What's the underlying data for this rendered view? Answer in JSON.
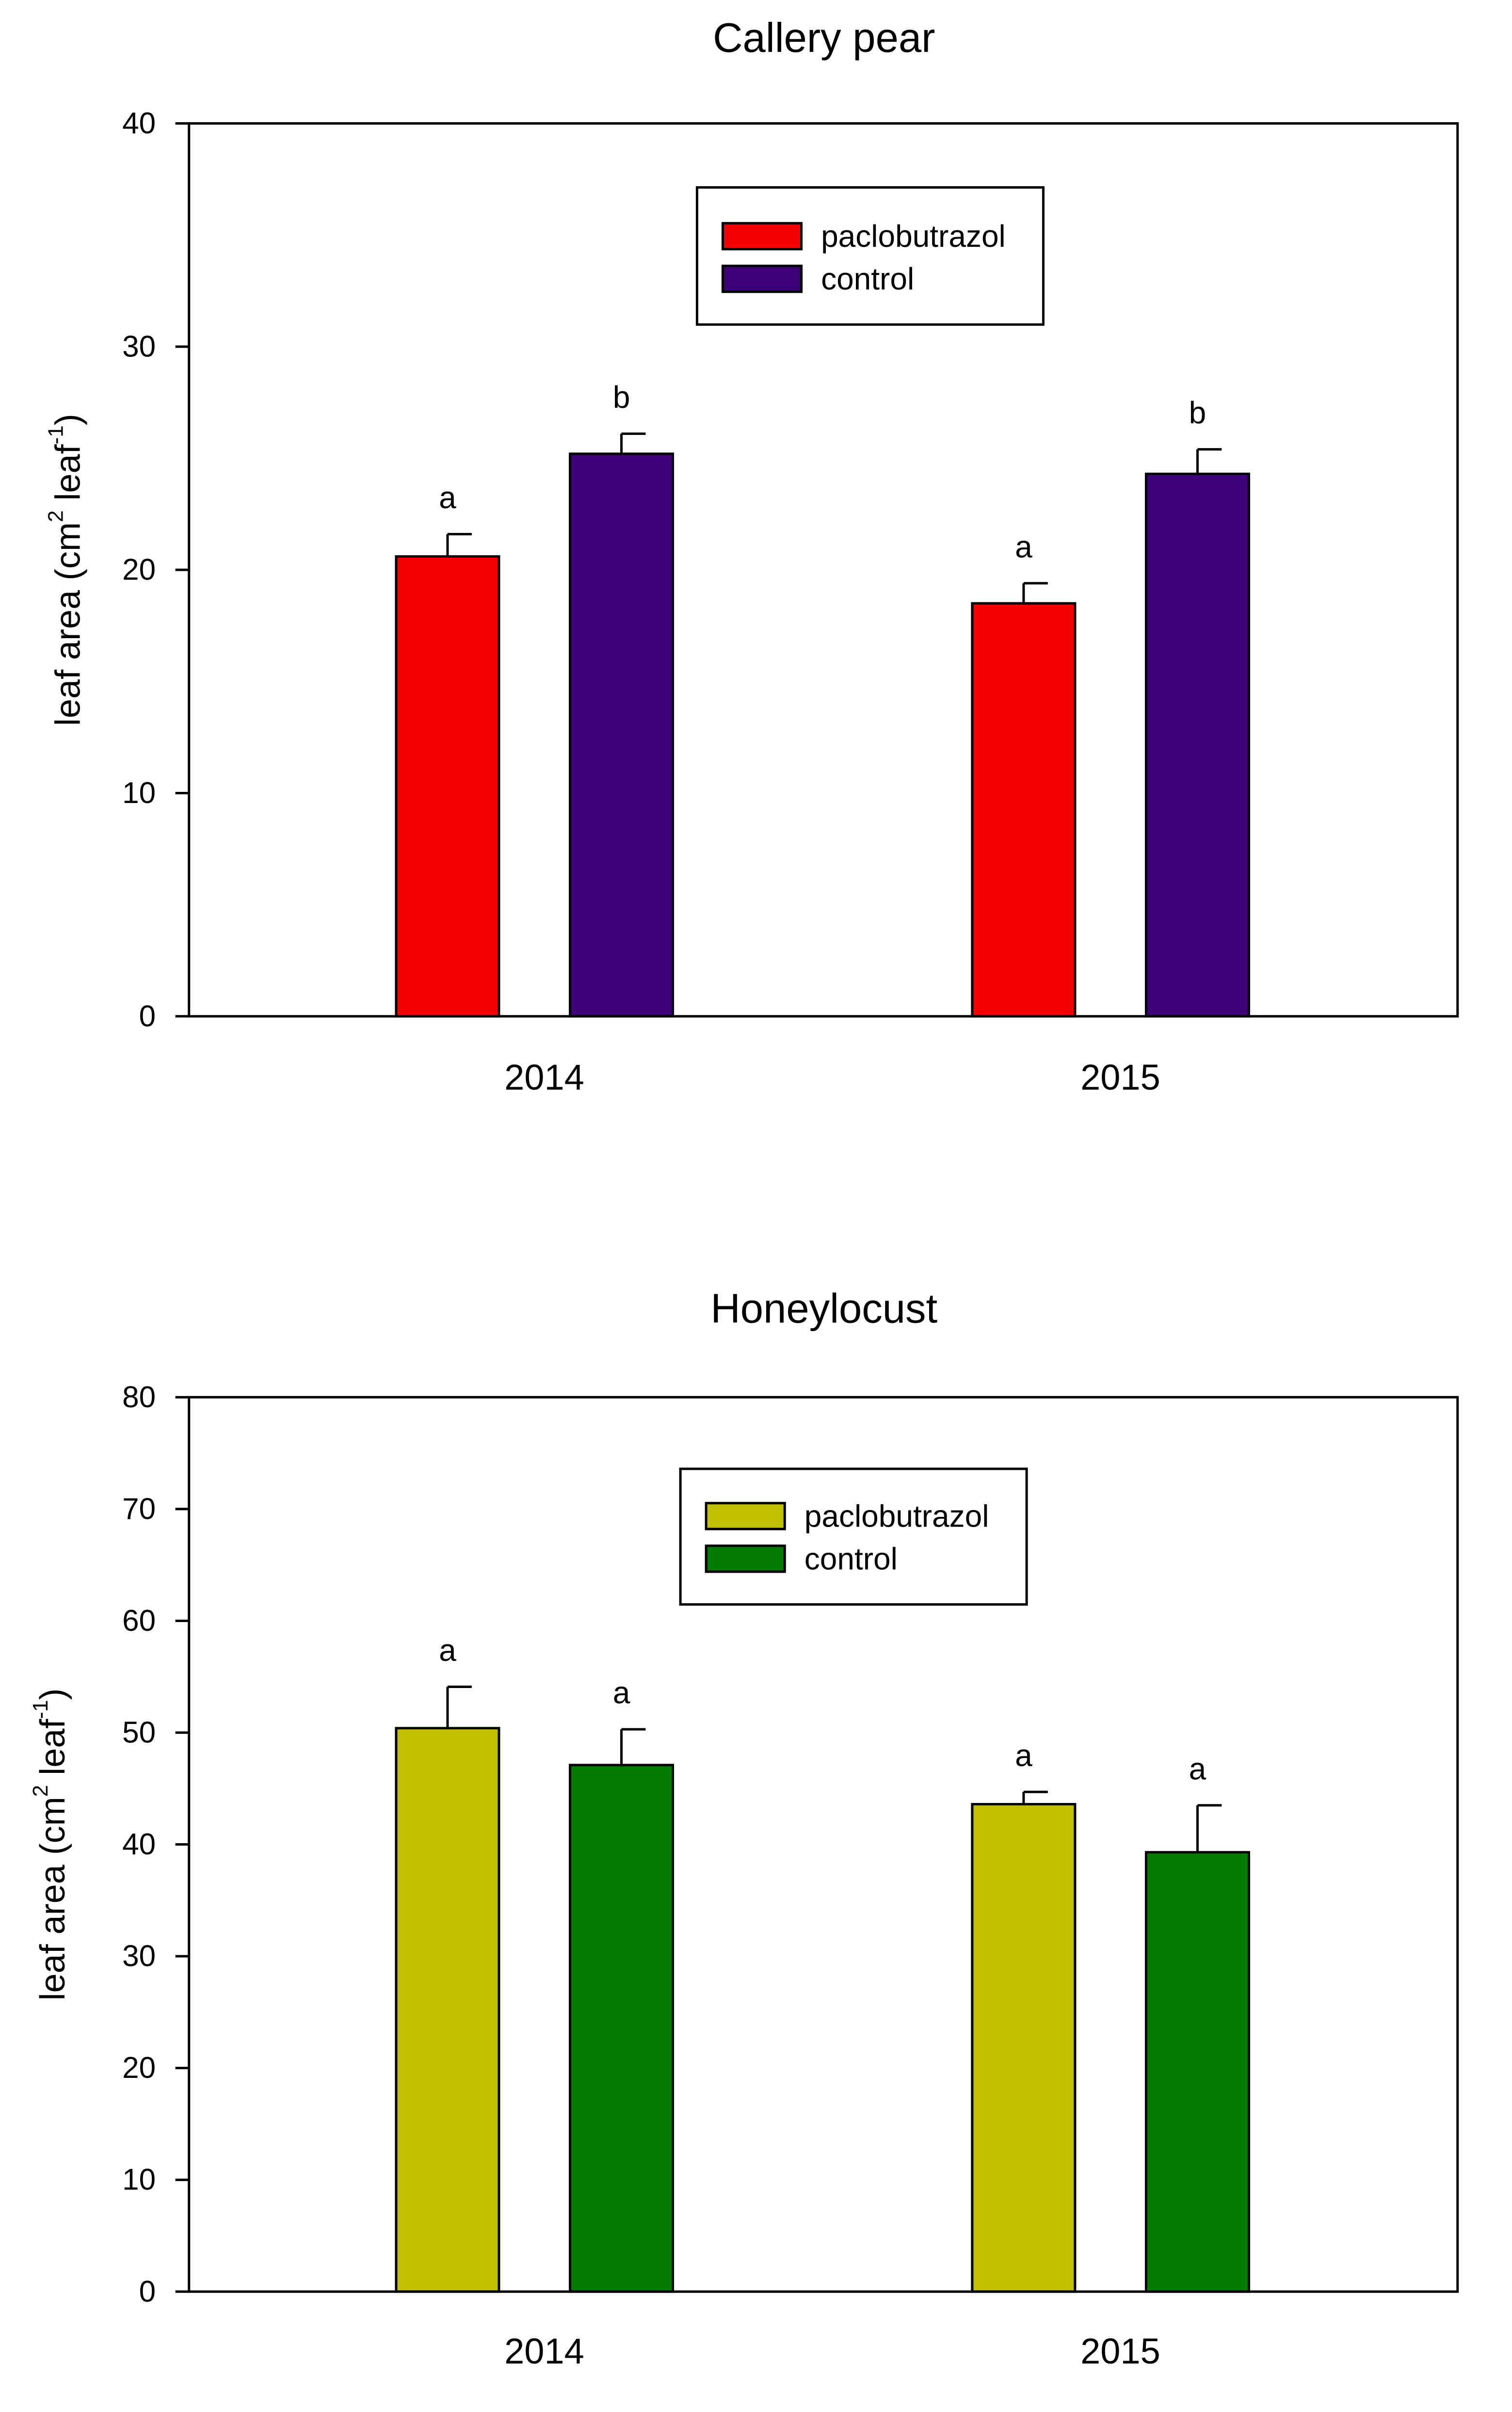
{
  "chart_data": [
    {
      "type": "bar",
      "title": "Callery pear",
      "ylabel": {
        "prefix": "leaf area (cm",
        "sup1": "2",
        "middle": " leaf",
        "sup2": "-1",
        "suffix": ")"
      },
      "ylim": [
        0,
        40
      ],
      "yticks": [
        0,
        10,
        20,
        30,
        40
      ],
      "categories": [
        "2014",
        "2015"
      ],
      "series": [
        {
          "name": "paclobutrazol",
          "color": "#f80000",
          "values": [
            20.6,
            18.5
          ],
          "errors": [
            1.0,
            0.9
          ],
          "letters": [
            "a",
            "a"
          ]
        },
        {
          "name": "control",
          "color": "#3d0077",
          "values": [
            25.2,
            24.3
          ],
          "errors": [
            0.9,
            1.1
          ],
          "letters": [
            "b",
            "b"
          ]
        }
      ],
      "legend_placement": "top-center"
    },
    {
      "type": "bar",
      "title": "Honeylocust",
      "ylabel": {
        "prefix": "leaf area (cm",
        "sup1": "2",
        "middle": " leaf",
        "sup2": "-1",
        "suffix": ")"
      },
      "ylim": [
        0,
        80
      ],
      "yticks": [
        0,
        10,
        20,
        30,
        40,
        50,
        60,
        70,
        80
      ],
      "categories": [
        "2014",
        "2015"
      ],
      "series": [
        {
          "name": "paclobutrazol",
          "color": "#c0c000",
          "values": [
            50.4,
            43.6
          ],
          "errors": [
            3.7,
            1.1
          ],
          "letters": [
            "a",
            "a"
          ]
        },
        {
          "name": "control",
          "color": "#007b00",
          "values": [
            47.1,
            39.3
          ],
          "errors": [
            3.2,
            4.2
          ],
          "letters": [
            "a",
            "a"
          ]
        }
      ],
      "legend_placement": "top-center"
    }
  ]
}
